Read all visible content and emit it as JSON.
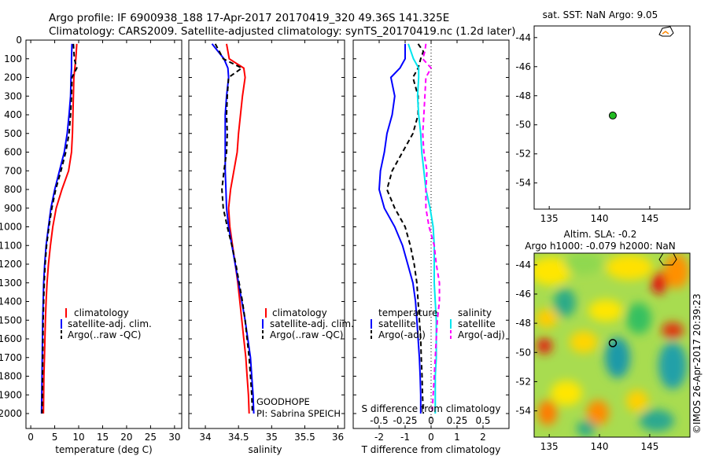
{
  "header": {
    "line1": "Argo profile: IF 6900938_188 17-Apr-2017 20170419_320 49.36S 141.325E",
    "line2": "Climatology: CARS2009. Satellite-adjusted climatology: synTS_20170419.nc (1.2d later)"
  },
  "colors": {
    "climatology": "#ff0000",
    "satellite": "#0000ff",
    "argo": "#000000",
    "sat_salinity": "#00e5ee",
    "argo_adj_salinity": "#ff00ff",
    "float_marker": "#22bb22"
  },
  "depth_ticks": [
    "0",
    "100",
    "200",
    "300",
    "400",
    "500",
    "600",
    "700",
    "800",
    "900",
    "1000",
    "1100",
    "1200",
    "1300",
    "1400",
    "1500",
    "1600",
    "1700",
    "1800",
    "1900",
    "2000"
  ],
  "chart_data": [
    {
      "type": "line",
      "name": "temperature-profile",
      "xlabel": "temperature (deg C)",
      "ylabel": "",
      "xlim": [
        -1,
        31.5
      ],
      "ylim": [
        2080,
        0
      ],
      "y_reversed": true,
      "xticks": [
        "0",
        "5",
        "10",
        "15",
        "20",
        "25",
        "30"
      ],
      "legend": [
        "climatology",
        "satellite-adj. clim.",
        "Argo(..raw -QC)"
      ],
      "series": [
        {
          "key": "clim",
          "color": "#ff0000",
          "depth": [
            20,
            100,
            150,
            200,
            300,
            400,
            500,
            600,
            700,
            800,
            900,
            1000,
            1100,
            1200,
            1300,
            1400,
            1500,
            1600,
            1700,
            1800,
            1900,
            2000
          ],
          "values": [
            9.6,
            9.4,
            9.2,
            9.0,
            8.9,
            8.8,
            8.7,
            8.5,
            7.9,
            6.5,
            5.3,
            4.6,
            4.1,
            3.7,
            3.4,
            3.2,
            3.05,
            2.95,
            2.85,
            2.75,
            2.7,
            2.65
          ]
        },
        {
          "key": "sat",
          "color": "#0000ff",
          "depth": [
            20,
            100,
            150,
            200,
            300,
            400,
            500,
            600,
            700,
            800,
            900,
            1000,
            1100,
            1200,
            1300,
            1400,
            1500,
            1600,
            1700,
            1800,
            1900,
            2000
          ],
          "values": [
            8.6,
            8.5,
            8.5,
            8.4,
            8.3,
            8.0,
            7.6,
            7.0,
            6.0,
            5.0,
            4.2,
            3.7,
            3.2,
            2.9,
            2.7,
            2.6,
            2.5,
            2.45,
            2.4,
            2.35,
            2.3,
            2.25
          ]
        },
        {
          "key": "argo",
          "color": "#000000",
          "dashed": true,
          "depth": [
            20,
            60,
            100,
            150,
            200,
            300,
            400,
            500,
            600,
            700,
            800,
            900,
            1000,
            1100,
            1200,
            1300,
            1400,
            1500,
            1600,
            1700,
            1800,
            1900,
            2000
          ],
          "values": [
            8.9,
            9.0,
            9.1,
            9.6,
            8.6,
            8.5,
            8.3,
            8.0,
            7.3,
            6.3,
            5.2,
            4.4,
            3.8,
            3.3,
            3.0,
            2.8,
            2.7,
            2.6,
            2.55,
            2.5,
            2.45,
            2.4,
            2.35
          ]
        }
      ]
    },
    {
      "type": "line",
      "name": "salinity-profile",
      "xlabel": "salinity",
      "ylabel": "",
      "xlim": [
        33.75,
        36.1
      ],
      "ylim": [
        2080,
        0
      ],
      "y_reversed": true,
      "xticks": [
        "34",
        "34.5",
        "35",
        "35.5",
        "36"
      ],
      "legend": [
        "climatology",
        "satellite-adj. clim.",
        "Argo(..raw -QC)"
      ],
      "annotation": [
        "GOODHOPE",
        "PI: Sabrina SPEICH"
      ],
      "series": [
        {
          "key": "clim",
          "color": "#ff0000",
          "depth": [
            20,
            100,
            150,
            200,
            300,
            400,
            500,
            600,
            700,
            800,
            900,
            1000,
            1100,
            1200,
            1300,
            1400,
            1500,
            1600,
            1700,
            1800,
            1900,
            2000
          ],
          "values": [
            34.32,
            34.36,
            34.58,
            34.6,
            34.56,
            34.53,
            34.5,
            34.48,
            34.43,
            34.38,
            34.35,
            34.37,
            34.41,
            34.45,
            34.49,
            34.52,
            34.55,
            34.58,
            34.61,
            34.63,
            34.65,
            34.66
          ]
        },
        {
          "key": "sat",
          "color": "#0000ff",
          "depth": [
            20,
            100,
            150,
            200,
            300,
            400,
            500,
            600,
            700,
            800,
            900,
            1000,
            1100,
            1200,
            1300,
            1400,
            1500,
            1600,
            1700,
            1800,
            1900,
            2000
          ],
          "values": [
            34.1,
            34.28,
            34.34,
            34.35,
            34.32,
            34.3,
            34.3,
            34.3,
            34.3,
            34.31,
            34.32,
            34.35,
            34.4,
            34.45,
            34.5,
            34.55,
            34.6,
            34.64,
            34.68,
            34.7,
            34.72,
            34.73
          ]
        },
        {
          "key": "argo",
          "color": "#000000",
          "dashed": true,
          "depth": [
            20,
            100,
            150,
            200,
            300,
            400,
            500,
            600,
            700,
            800,
            900,
            1000,
            1100,
            1200,
            1300,
            1400,
            1500,
            1600,
            1700,
            1800,
            1900,
            2000
          ],
          "values": [
            34.15,
            34.27,
            34.55,
            34.35,
            34.33,
            34.32,
            34.33,
            34.32,
            34.28,
            34.25,
            34.27,
            34.33,
            34.4,
            34.46,
            34.51,
            34.56,
            34.6,
            34.63,
            34.66,
            34.68,
            34.7,
            34.71
          ]
        }
      ]
    },
    {
      "type": "line",
      "name": "difference-profile",
      "xlabel": "T difference from climatology",
      "top_label": "S difference from climatology",
      "xlim": [
        -3,
        3
      ],
      "ylim": [
        2080,
        0
      ],
      "y_reversed": true,
      "xticks": [
        "-2",
        "-1",
        "0",
        "1",
        "2"
      ],
      "s_ticks": [
        "-0.5",
        "-0.25",
        "0",
        "0.25",
        "0.5"
      ],
      "legend_temperature": {
        "title": "temperature",
        "items": [
          "satellite",
          "Argo(-adj)"
        ]
      },
      "legend_salinity": {
        "title": "salinity",
        "items": [
          "satellite",
          "Argo(-adj)"
        ]
      },
      "series": [
        {
          "key": "t_sat",
          "color": "#0000ff",
          "depth": [
            20,
            100,
            150,
            200,
            300,
            400,
            500,
            600,
            700,
            800,
            900,
            1000,
            1100,
            1200,
            1300,
            1400,
            1500,
            1600,
            1700,
            1800,
            1900,
            2000
          ],
          "values": [
            -1.0,
            -1.0,
            -1.2,
            -1.55,
            -1.4,
            -1.5,
            -1.7,
            -1.8,
            -1.95,
            -2.0,
            -1.8,
            -1.4,
            -1.1,
            -0.9,
            -0.7,
            -0.6,
            -0.55,
            -0.5,
            -0.45,
            -0.42,
            -0.4,
            -0.4
          ]
        },
        {
          "key": "t_argo",
          "color": "#000000",
          "dashed": true,
          "depth": [
            20,
            60,
            100,
            150,
            200,
            300,
            400,
            500,
            600,
            700,
            800,
            900,
            1000,
            1100,
            1200,
            1300,
            1400,
            1500,
            1600,
            1700,
            1800,
            1900,
            2000
          ],
          "values": [
            -0.5,
            -0.3,
            -0.4,
            -0.5,
            -0.7,
            -0.5,
            -0.5,
            -0.7,
            -1.1,
            -1.5,
            -1.7,
            -1.4,
            -1.0,
            -0.8,
            -0.65,
            -0.55,
            -0.5,
            -0.45,
            -0.4,
            -0.38,
            -0.35,
            -0.33,
            -0.3
          ]
        },
        {
          "key": "s_sat",
          "color": "#00e5ee",
          "depth": [
            20,
            100,
            150,
            200,
            300,
            400,
            500,
            600,
            700,
            800,
            900,
            1000,
            1100,
            1200,
            1300,
            1400,
            1500,
            1600,
            1700,
            1800,
            1900,
            2000
          ],
          "values": [
            -0.22,
            -0.17,
            -0.12,
            -0.12,
            -0.13,
            -0.12,
            -0.1,
            -0.09,
            -0.07,
            -0.05,
            -0.01,
            0.02,
            0.03,
            0.03,
            0.03,
            0.04,
            0.05,
            0.05,
            0.05,
            0.04,
            0.04,
            0.04
          ]
        },
        {
          "key": "s_argo",
          "color": "#ff00ff",
          "dashed": true,
          "depth": [
            20,
            60,
            100,
            150,
            200,
            300,
            400,
            500,
            600,
            700,
            800,
            900,
            1000,
            1100,
            1200,
            1300,
            1400,
            1500,
            1600,
            1700,
            1800,
            1900,
            2000
          ],
          "values": [
            -0.05,
            -0.06,
            -0.08,
            0.0,
            -0.05,
            -0.06,
            -0.07,
            -0.08,
            -0.07,
            -0.04,
            -0.05,
            -0.05,
            -0.02,
            0.03,
            0.05,
            0.08,
            0.08,
            0.06,
            0.05,
            0.04,
            0.03,
            0.02,
            0.01
          ]
        }
      ]
    },
    {
      "type": "scatter",
      "name": "sst-map",
      "title": "sat. SST: NaN Argo: 9.05",
      "xlim": [
        133.5,
        149
      ],
      "ylim": [
        -55.8,
        -43.2
      ],
      "xticks": [
        "135",
        "140",
        "145"
      ],
      "yticks": [
        "-44",
        "-46",
        "-48",
        "-50",
        "-52",
        "-54"
      ],
      "points": [
        {
          "x": 141.325,
          "y": -49.36
        }
      ]
    },
    {
      "type": "heatmap",
      "name": "sla-map",
      "title": "Altim. SLA: -0.2",
      "subtitle": "Argo h1000: -0.079 h2000: NaN",
      "xlim": [
        133.5,
        149
      ],
      "ylim": [
        -55.8,
        -43.2
      ],
      "xticks": [
        "135",
        "140",
        "145"
      ],
      "yticks": [
        "-44",
        "-46",
        "-48",
        "-50",
        "-52",
        "-54"
      ],
      "points": [
        {
          "x": 141.325,
          "y": -49.36
        }
      ]
    }
  ],
  "credit": "©IMOS 26-Apr-2017 20:39:23"
}
